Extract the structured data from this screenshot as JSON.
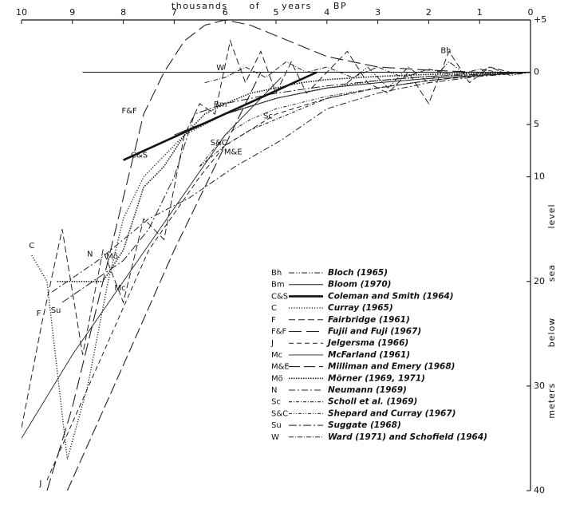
{
  "chart_data": {
    "type": "line",
    "x_label": "thousands of years BP",
    "y_label": "meters below sea level",
    "xlim": [
      10,
      0
    ],
    "xticks": [
      10,
      9,
      8,
      7,
      6,
      5,
      4,
      3,
      2,
      1,
      0
    ],
    "ylim": [
      -40,
      5
    ],
    "yticks": [
      {
        "value": 5,
        "label": "+5"
      },
      {
        "value": 0,
        "label": "0"
      },
      {
        "value": -5,
        "label": "5"
      },
      {
        "value": -10,
        "label": "10"
      },
      {
        "value": -20,
        "label": "20"
      },
      {
        "value": -30,
        "label": "30"
      },
      {
        "value": -40,
        "label": "40"
      }
    ],
    "series": [
      {
        "name": "Bloch (1965)",
        "abbr": "Bh",
        "color": "#222",
        "x": [
          3.6,
          3.2,
          2.8,
          2.4,
          2,
          1.6,
          1.2,
          0.8,
          0.4,
          0
        ],
        "values": [
          -1,
          0.5,
          -1.5,
          0.5,
          -1,
          1,
          -0.5,
          0.5,
          -0.3,
          0
        ]
      },
      {
        "name": "Bloom (1970)",
        "abbr": "Bm",
        "color": "#222",
        "x": [
          7,
          6,
          5,
          4,
          3,
          2,
          1,
          0
        ],
        "values": [
          -6,
          -4,
          -2.5,
          -1.5,
          -1,
          -0.6,
          -0.3,
          0
        ]
      },
      {
        "name": "Coleman and Smith (1964)",
        "abbr": "C&S",
        "color": "#111",
        "x": [
          8,
          4.2
        ],
        "values": [
          -8.4,
          0
        ]
      },
      {
        "name": "Curray (1965)",
        "abbr": "C",
        "color": "#222",
        "x": [
          9.8,
          9.5,
          9.1,
          8.7,
          8.3,
          8,
          7.6,
          7.2,
          6.8,
          6,
          5,
          4,
          3,
          2,
          0
        ],
        "values": [
          -17.5,
          -20,
          -37,
          -30,
          -20,
          -14,
          -10,
          -8,
          -6,
          -4,
          -2.5,
          -1.5,
          -0.8,
          -0.4,
          0
        ]
      },
      {
        "name": "Fairbridge (1961)",
        "abbr": "F",
        "color": "#222",
        "x": [
          10,
          9.6,
          9.2,
          8.8,
          8.4,
          8,
          7.6,
          7.2,
          6.8,
          6.5,
          6.2,
          5.9,
          5.6,
          5.3,
          5,
          4.7,
          4.4,
          4,
          3.6,
          3.2,
          2.8,
          2.4,
          2,
          1.6,
          1.2,
          0.8,
          0.4,
          0
        ],
        "values": [
          -34,
          -24,
          -15,
          -27,
          -17,
          -22,
          -14,
          -16,
          -6,
          -3,
          -4,
          3,
          -1,
          2,
          -2,
          1,
          -2,
          0,
          2,
          -1,
          -2,
          0,
          -3,
          2,
          -1,
          0.5,
          0,
          0
        ]
      },
      {
        "name": "Fujii and Fuji (1967)",
        "abbr": "F&F",
        "color": "#222",
        "x": [
          9.5,
          9,
          8.5,
          8,
          7.6,
          7.2,
          6.8,
          6.4,
          6,
          5.5,
          5,
          4.5,
          4,
          3.5,
          3,
          2,
          1,
          0
        ],
        "values": [
          -40,
          -32,
          -22,
          -12,
          -4,
          0,
          3,
          4.5,
          5,
          4.5,
          3.5,
          2.5,
          1.5,
          1,
          0.5,
          0.2,
          0,
          0
        ]
      },
      {
        "name": "Jelgersma (1966)",
        "abbr": "J",
        "color": "#222",
        "x": [
          9.5,
          8.5,
          7.5,
          6.5,
          6,
          5,
          4,
          3,
          2,
          1,
          0
        ],
        "values": [
          -39,
          -28,
          -17,
          -10,
          -7,
          -4,
          -2.5,
          -1.5,
          -0.8,
          -0.3,
          0
        ]
      },
      {
        "name": "McFarland (1961)",
        "abbr": "Mc",
        "color": "#222",
        "x": [
          10,
          9,
          8,
          7,
          6,
          5,
          4.9
        ],
        "values": [
          -35,
          -27,
          -20,
          -13,
          -6,
          -1,
          -0.5
        ]
      },
      {
        "name": "Milliman and Emery (1968)",
        "abbr": "M&E",
        "color": "#222",
        "x": [
          9.1,
          8,
          7,
          6,
          5.3
        ],
        "values": [
          -40,
          -28,
          -17,
          -7,
          0
        ]
      },
      {
        "name": "Mörner (1969, 1971)",
        "abbr": "Mö",
        "color": "#222",
        "x": [
          9.3,
          8.8,
          8.4,
          8,
          7.6,
          7.2,
          6.8,
          6.4,
          6,
          5.5,
          5,
          4.5,
          4,
          3,
          2,
          1,
          0
        ],
        "values": [
          -20,
          -20,
          -20,
          -17,
          -11,
          -9,
          -6,
          -4,
          -3,
          -2,
          -1.5,
          -1,
          -0.7,
          -0.4,
          -0.2,
          -0.1,
          0
        ]
      },
      {
        "name": "Neumann (1969)",
        "abbr": "N",
        "color": "#222",
        "x": [
          9.4,
          8.5,
          7.5,
          6.7,
          5.8,
          4.9,
          4,
          3,
          2,
          1,
          0
        ],
        "values": [
          -21,
          -18,
          -14,
          -12,
          -9,
          -6.5,
          -3.5,
          -2,
          -1,
          -0.4,
          0
        ]
      },
      {
        "name": "Scholl et al. (1969)",
        "abbr": "Sc",
        "color": "#222",
        "x": [
          6.5,
          6,
          5.5,
          5,
          4.5,
          4,
          3,
          2,
          1,
          0
        ],
        "values": [
          -9,
          -7,
          -5.5,
          -4.5,
          -3.5,
          -2.5,
          -1.5,
          -0.8,
          -0.3,
          0
        ]
      },
      {
        "name": "Shepard and Curray (1967)",
        "abbr": "S&C",
        "color": "#222",
        "x": [
          6.5,
          6,
          5.5,
          5,
          4,
          3,
          2,
          1,
          0
        ],
        "values": [
          -9,
          -6,
          -4.5,
          -3.5,
          -2.3,
          -1.5,
          -0.8,
          -0.3,
          0
        ]
      },
      {
        "name": "Suggate (1968)",
        "abbr": "Su",
        "color": "#222",
        "x": [
          9.2,
          8.6,
          8,
          7.5,
          7,
          6.6,
          6,
          5,
          4,
          3,
          2,
          1,
          0
        ],
        "values": [
          -22,
          -20,
          -18,
          -15,
          -10,
          -4,
          -3,
          -2,
          -1.3,
          -0.8,
          -0.4,
          -0.2,
          0
        ]
      },
      {
        "name": "Ward (1971) and Schofield (1964)",
        "abbr": "W",
        "color": "#222",
        "x": [
          6.4,
          6,
          5.6,
          5.2,
          4.8,
          4.4,
          4,
          3.5,
          3,
          2.5,
          2,
          1.5,
          1,
          0.5,
          0
        ],
        "values": [
          -1,
          -0.5,
          0.5,
          -0.5,
          1,
          0,
          0.5,
          -0.5,
          0.5,
          -0.5,
          0.3,
          -0.3,
          0.3,
          -0.1,
          0
        ]
      }
    ]
  }
}
